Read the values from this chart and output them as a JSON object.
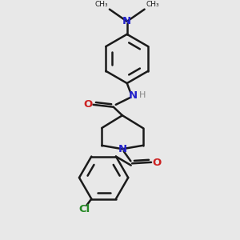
{
  "bg_color": "#e8e8e8",
  "bond_color": "#1a1a1a",
  "bond_width": 1.8,
  "N_color": "#2222cc",
  "O_color": "#cc2222",
  "Cl_color": "#228822",
  "H_color": "#888888",
  "font_size": 8.5,
  "fig_width": 3.0,
  "fig_height": 3.0,
  "dpi": 100,
  "xlim": [
    0,
    10
  ],
  "ylim": [
    0,
    10
  ]
}
